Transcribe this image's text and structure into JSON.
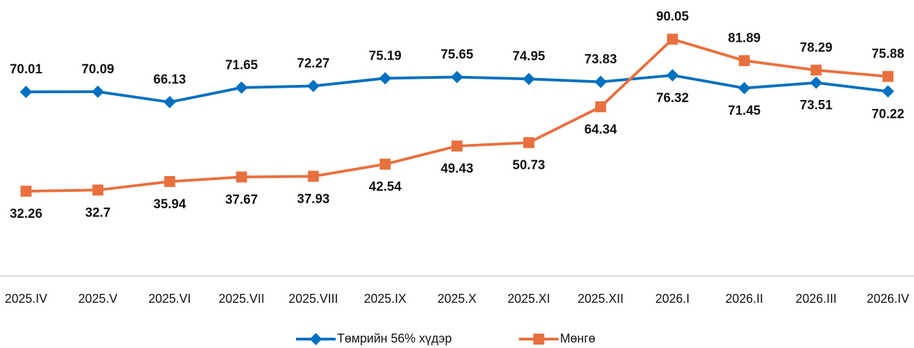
{
  "chart_data": {
    "type": "line",
    "categories": [
      "2025.IV",
      "2025.V",
      "2025.VI",
      "2025.VII",
      "2025.VIII",
      "2025.IX",
      "2025.X",
      "2025.XI",
      "2025.XII",
      "2026.I",
      "2026.II",
      "2026.III",
      "2026.IV"
    ],
    "series": [
      {
        "name": "Төмрийн 56% хүдэр",
        "color": "#0070c0",
        "marker": "diamond",
        "values": [
          70.01,
          70.09,
          66.13,
          71.65,
          72.27,
          75.19,
          75.65,
          74.95,
          73.83,
          76.32,
          71.45,
          73.51,
          70.22
        ]
      },
      {
        "name": "Мөнгө",
        "color": "#e8703e",
        "marker": "square",
        "values": [
          32.26,
          32.7,
          35.94,
          37.67,
          37.93,
          42.54,
          49.43,
          50.73,
          64.34,
          90.05,
          81.89,
          78.29,
          75.88
        ]
      }
    ],
    "ylim": [
      0,
      100
    ],
    "legend": "bottom"
  }
}
